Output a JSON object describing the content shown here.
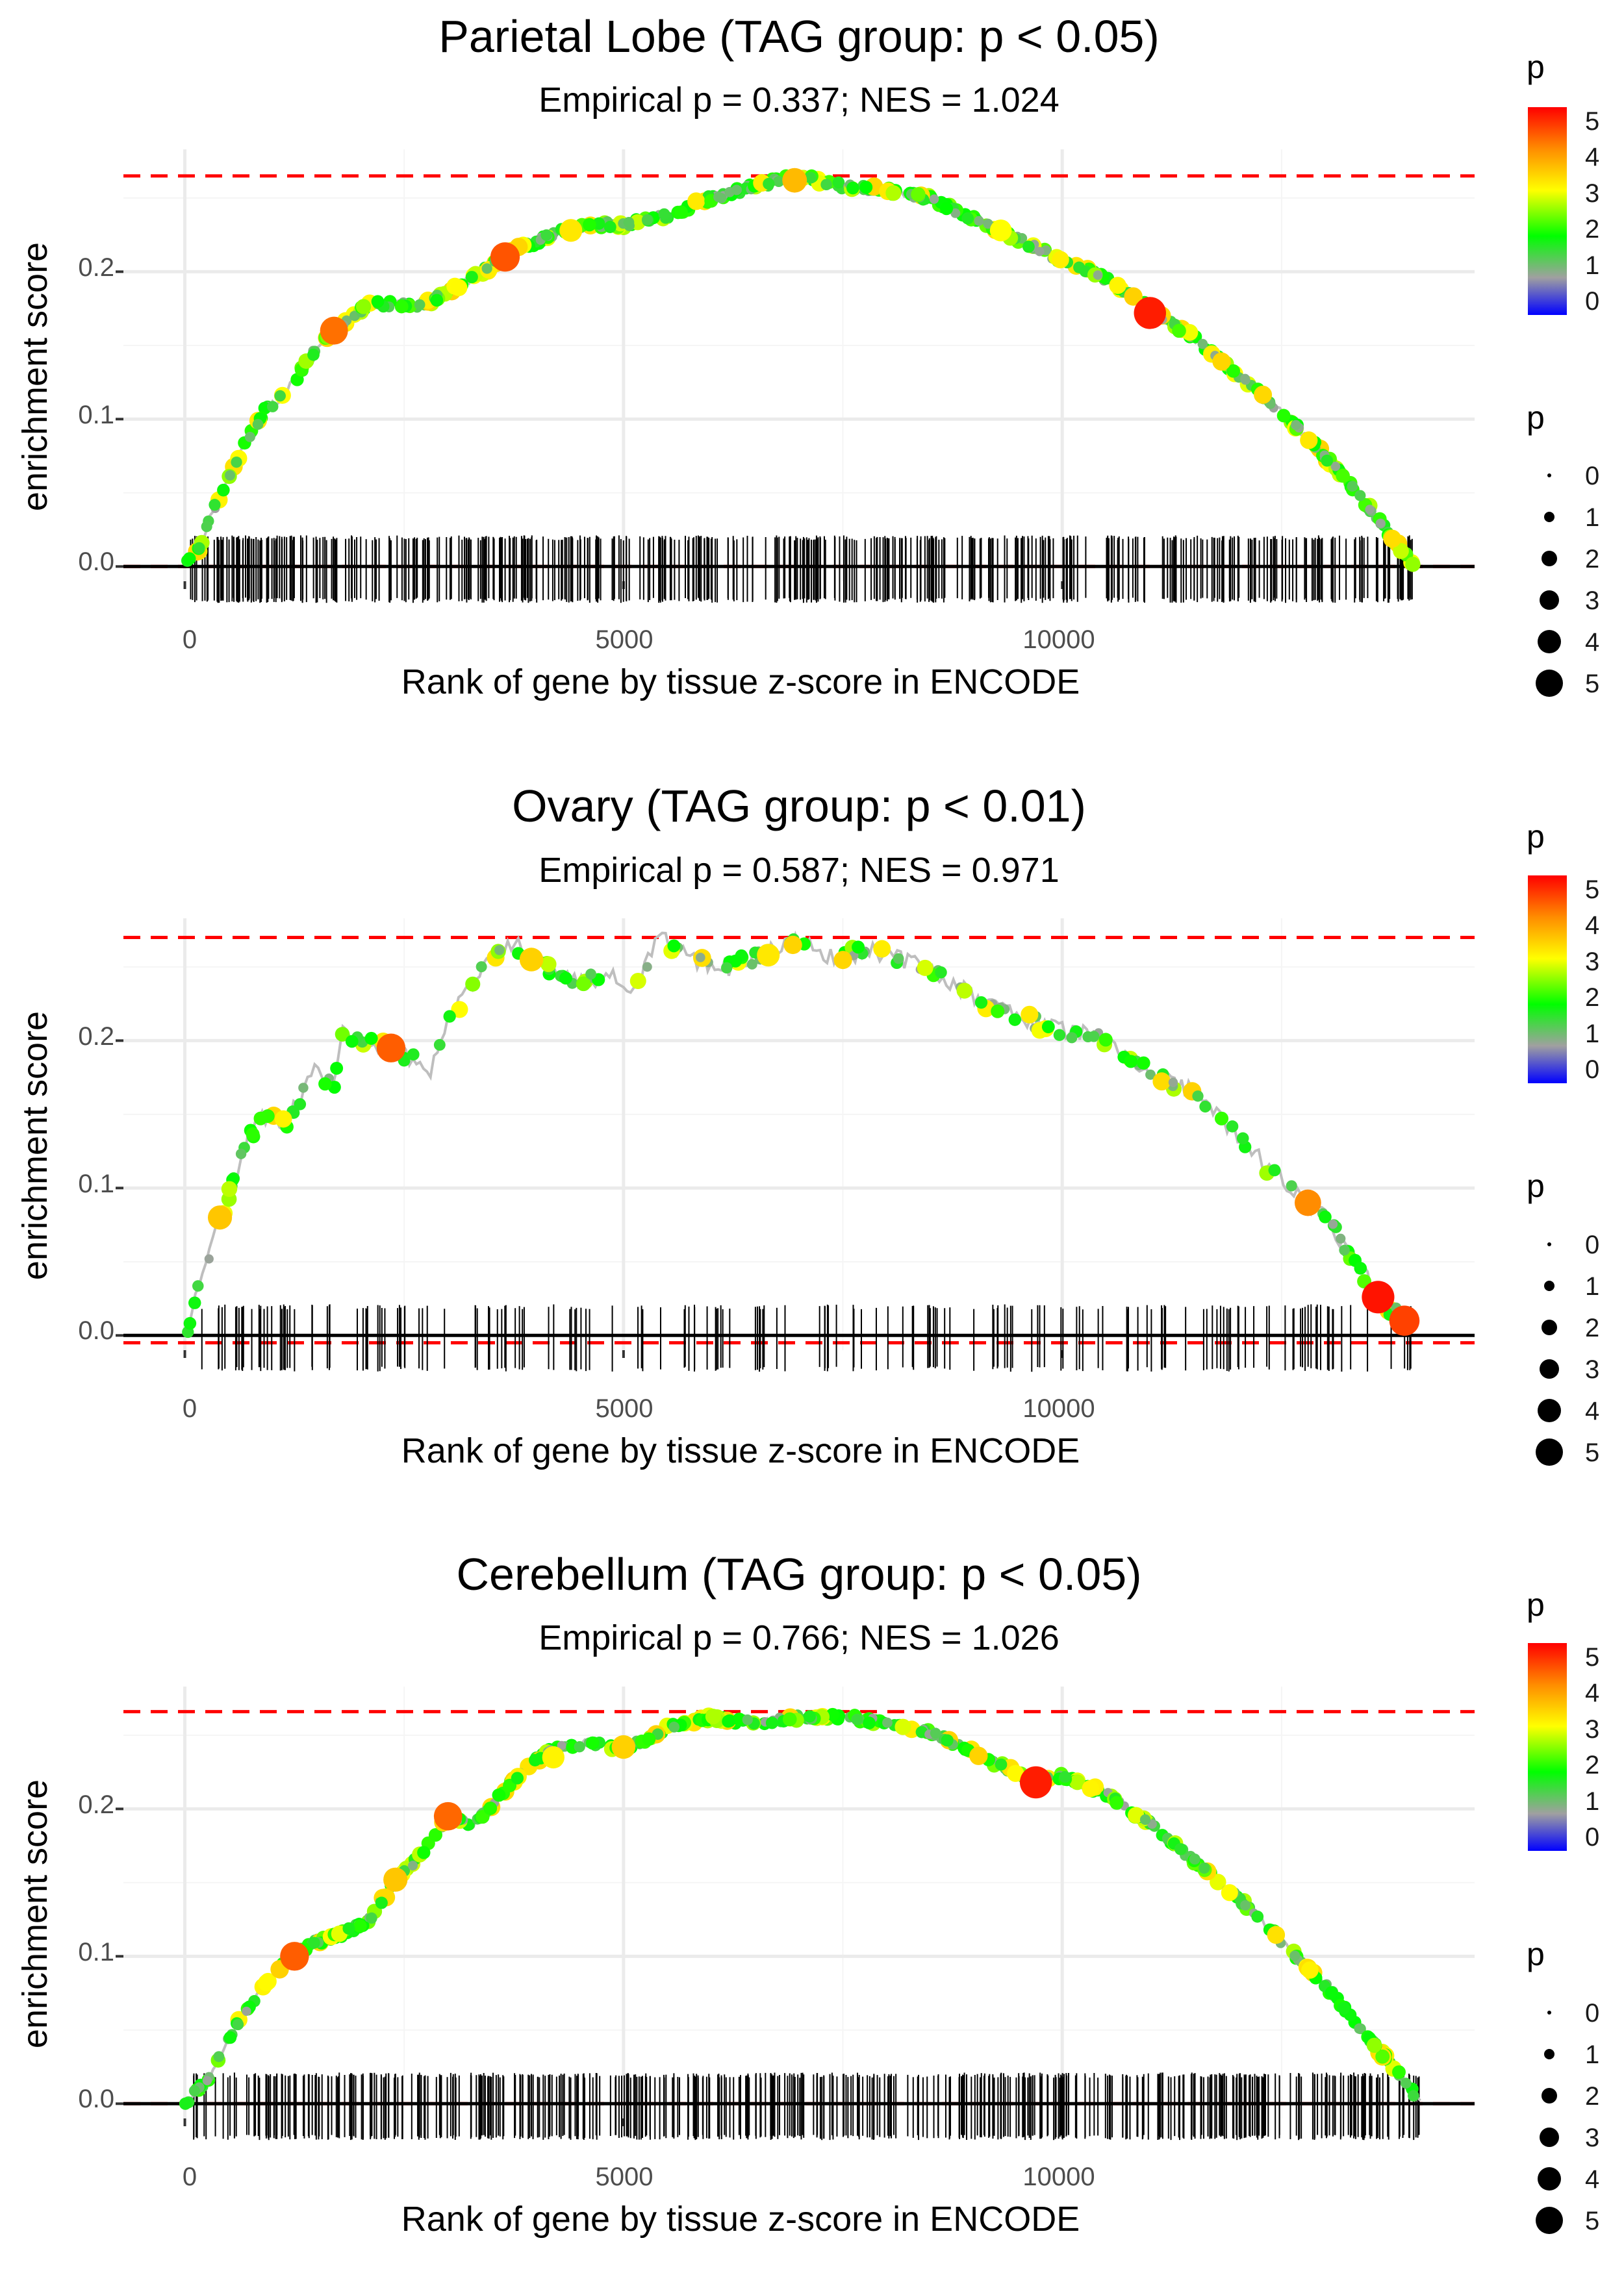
{
  "figure": {
    "title_note": "Three gene set enrichment plots",
    "legend_colorbar_title": "p",
    "legend_size_title": "p",
    "colorbar_ticks": [
      "0",
      "1",
      "2",
      "3",
      "4",
      "5"
    ],
    "size_legend_labels": [
      "0",
      "1",
      "2",
      "3",
      "4",
      "5"
    ],
    "colors": {
      "ref_line": "#FF0000",
      "zero_line": "#000000",
      "running_line": "#BEBEBE",
      "gradient": [
        "#0000FF",
        "#A0A0A0",
        "#00FF00",
        "#FFFF00",
        "#FF8C00",
        "#FF0000"
      ]
    }
  },
  "chart_data": [
    {
      "type": "line",
      "title": "Parietal Lobe (TAG group: p < 0.05)",
      "subtitle": "Empirical p = 0.337; NES = 1.024",
      "xlabel": "Rank of gene by tissue z-score in ENCODE",
      "ylabel": "enrichment score",
      "xlim": [
        -700,
        14700
      ],
      "ylim": [
        -0.01,
        0.283
      ],
      "xticks": [
        0,
        5000,
        10000
      ],
      "xtick_labels": [
        "0",
        "5000",
        "10000"
      ],
      "yticks": [
        0.0,
        0.1,
        0.2
      ],
      "ytick_labels": [
        "0.0",
        "0.1",
        "0.2"
      ],
      "max_es_line": 0.265,
      "min_es_line": 0.0,
      "x_end": 14000,
      "n_ticks": 520,
      "seed": 11,
      "curve": [
        [
          0,
          0
        ],
        [
          150,
          0.01
        ],
        [
          300,
          0.035
        ],
        [
          500,
          0.06
        ],
        [
          700,
          0.085
        ],
        [
          900,
          0.105
        ],
        [
          1100,
          0.115
        ],
        [
          1300,
          0.13
        ],
        [
          1500,
          0.148
        ],
        [
          1700,
          0.16
        ],
        [
          1900,
          0.17
        ],
        [
          2100,
          0.178
        ],
        [
          2400,
          0.178
        ],
        [
          2600,
          0.177
        ],
        [
          2800,
          0.18
        ],
        [
          3100,
          0.19
        ],
        [
          3400,
          0.2
        ],
        [
          3700,
          0.213
        ],
        [
          4000,
          0.22
        ],
        [
          4300,
          0.228
        ],
        [
          4600,
          0.232
        ],
        [
          5000,
          0.232
        ],
        [
          5500,
          0.238
        ],
        [
          6000,
          0.25
        ],
        [
          6500,
          0.258
        ],
        [
          7000,
          0.265
        ],
        [
          7500,
          0.258
        ],
        [
          8000,
          0.255
        ],
        [
          8500,
          0.25
        ],
        [
          9000,
          0.235
        ],
        [
          9500,
          0.222
        ],
        [
          10000,
          0.207
        ],
        [
          10500,
          0.195
        ],
        [
          11000,
          0.175
        ],
        [
          11500,
          0.155
        ],
        [
          12000,
          0.13
        ],
        [
          12500,
          0.105
        ],
        [
          13000,
          0.075
        ],
        [
          13500,
          0.04
        ],
        [
          14000,
          0.0
        ]
      ],
      "highlights": [
        [
          1700,
          0.16,
          4.3
        ],
        [
          3650,
          0.21,
          4.6
        ],
        [
          11000,
          0.172,
          5.2
        ],
        [
          6950,
          0.262,
          3.6
        ],
        [
          4400,
          0.228,
          3.2
        ],
        [
          9300,
          0.228,
          3.0
        ]
      ]
    },
    {
      "type": "line",
      "title": "Ovary (TAG group: p < 0.01)",
      "subtitle": "Empirical p = 0.587; NES = 0.971",
      "xlabel": "Rank of gene by tissue z-score in ENCODE",
      "ylabel": "enrichment score",
      "xlim": [
        -700,
        14700
      ],
      "ylim": [
        -0.01,
        0.283
      ],
      "xticks": [
        0,
        5000,
        10000
      ],
      "xtick_labels": [
        "0",
        "5000",
        "10000"
      ],
      "yticks": [
        0.0,
        0.1,
        0.2
      ],
      "ytick_labels": [
        "0.0",
        "0.1",
        "0.2"
      ],
      "max_es_line": 0.27,
      "min_es_line": -0.005,
      "x_end": 14000,
      "n_ticks": 190,
      "seed": 23,
      "curve": [
        [
          0,
          0
        ],
        [
          150,
          0.03
        ],
        [
          300,
          0.06
        ],
        [
          500,
          0.095
        ],
        [
          700,
          0.13
        ],
        [
          900,
          0.15
        ],
        [
          1100,
          0.14
        ],
        [
          1300,
          0.16
        ],
        [
          1500,
          0.18
        ],
        [
          1700,
          0.17
        ],
        [
          1800,
          0.205
        ],
        [
          2100,
          0.2
        ],
        [
          2400,
          0.195
        ],
        [
          2800,
          0.18
        ],
        [
          3000,
          0.215
        ],
        [
          3300,
          0.24
        ],
        [
          3700,
          0.268
        ],
        [
          4100,
          0.25
        ],
        [
          4500,
          0.24
        ],
        [
          4900,
          0.245
        ],
        [
          5100,
          0.23
        ],
        [
          5400,
          0.27
        ],
        [
          5800,
          0.255
        ],
        [
          6200,
          0.25
        ],
        [
          6600,
          0.26
        ],
        [
          7000,
          0.268
        ],
        [
          7400,
          0.255
        ],
        [
          7800,
          0.262
        ],
        [
          8200,
          0.255
        ],
        [
          8600,
          0.245
        ],
        [
          9000,
          0.23
        ],
        [
          9400,
          0.22
        ],
        [
          9800,
          0.21
        ],
        [
          10300,
          0.205
        ],
        [
          10700,
          0.19
        ],
        [
          11000,
          0.178
        ],
        [
          11500,
          0.165
        ],
        [
          12000,
          0.135
        ],
        [
          12500,
          0.105
        ],
        [
          13000,
          0.08
        ],
        [
          13400,
          0.045
        ],
        [
          13700,
          0.02
        ],
        [
          14000,
          0.005
        ]
      ],
      "highlights": [
        [
          400,
          0.08,
          3.5
        ],
        [
          2350,
          0.195,
          4.5
        ],
        [
          3950,
          0.255,
          3.4
        ],
        [
          6650,
          0.258,
          3.2
        ],
        [
          12800,
          0.09,
          4.0
        ],
        [
          13600,
          0.026,
          5.3
        ],
        [
          13900,
          0.01,
          4.8
        ]
      ]
    },
    {
      "type": "line",
      "title": "Cerebellum (TAG group: p < 0.05)",
      "subtitle": "Empirical p = 0.766; NES = 1.026",
      "xlabel": "Rank of gene by tissue z-score in ENCODE",
      "ylabel": "enrichment score",
      "xlim": [
        -700,
        14700
      ],
      "ylim": [
        -0.01,
        0.283
      ],
      "xticks": [
        0,
        5000,
        10000
      ],
      "xtick_labels": [
        "0",
        "5000",
        "10000"
      ],
      "yticks": [
        0.0,
        0.1,
        0.2
      ],
      "ytick_labels": [
        "0.0",
        "0.1",
        "0.2"
      ],
      "max_es_line": 0.266,
      "min_es_line": 0.0,
      "x_end": 14100,
      "n_ticks": 520,
      "seed": 37,
      "curve": [
        [
          0,
          0
        ],
        [
          300,
          0.02
        ],
        [
          600,
          0.055
        ],
        [
          900,
          0.08
        ],
        [
          1200,
          0.1
        ],
        [
          1500,
          0.11
        ],
        [
          1800,
          0.115
        ],
        [
          2100,
          0.125
        ],
        [
          2400,
          0.15
        ],
        [
          2700,
          0.17
        ],
        [
          3000,
          0.195
        ],
        [
          3300,
          0.19
        ],
        [
          3600,
          0.21
        ],
        [
          3900,
          0.23
        ],
        [
          4200,
          0.24
        ],
        [
          4600,
          0.245
        ],
        [
          5000,
          0.24
        ],
        [
          5500,
          0.255
        ],
        [
          6000,
          0.262
        ],
        [
          6500,
          0.258
        ],
        [
          7000,
          0.262
        ],
        [
          7500,
          0.263
        ],
        [
          8000,
          0.258
        ],
        [
          8600,
          0.25
        ],
        [
          9200,
          0.232
        ],
        [
          9700,
          0.218
        ],
        [
          10000,
          0.222
        ],
        [
          10500,
          0.21
        ],
        [
          11000,
          0.19
        ],
        [
          11500,
          0.165
        ],
        [
          12000,
          0.14
        ],
        [
          12500,
          0.11
        ],
        [
          13000,
          0.08
        ],
        [
          13500,
          0.045
        ],
        [
          14100,
          0.0
        ]
      ],
      "highlights": [
        [
          1250,
          0.1,
          4.5
        ],
        [
          3000,
          0.195,
          4.4
        ],
        [
          2400,
          0.152,
          3.5
        ],
        [
          5000,
          0.242,
          3.4
        ],
        [
          9700,
          0.218,
          5.2
        ],
        [
          4200,
          0.235,
          3.1
        ]
      ]
    }
  ]
}
